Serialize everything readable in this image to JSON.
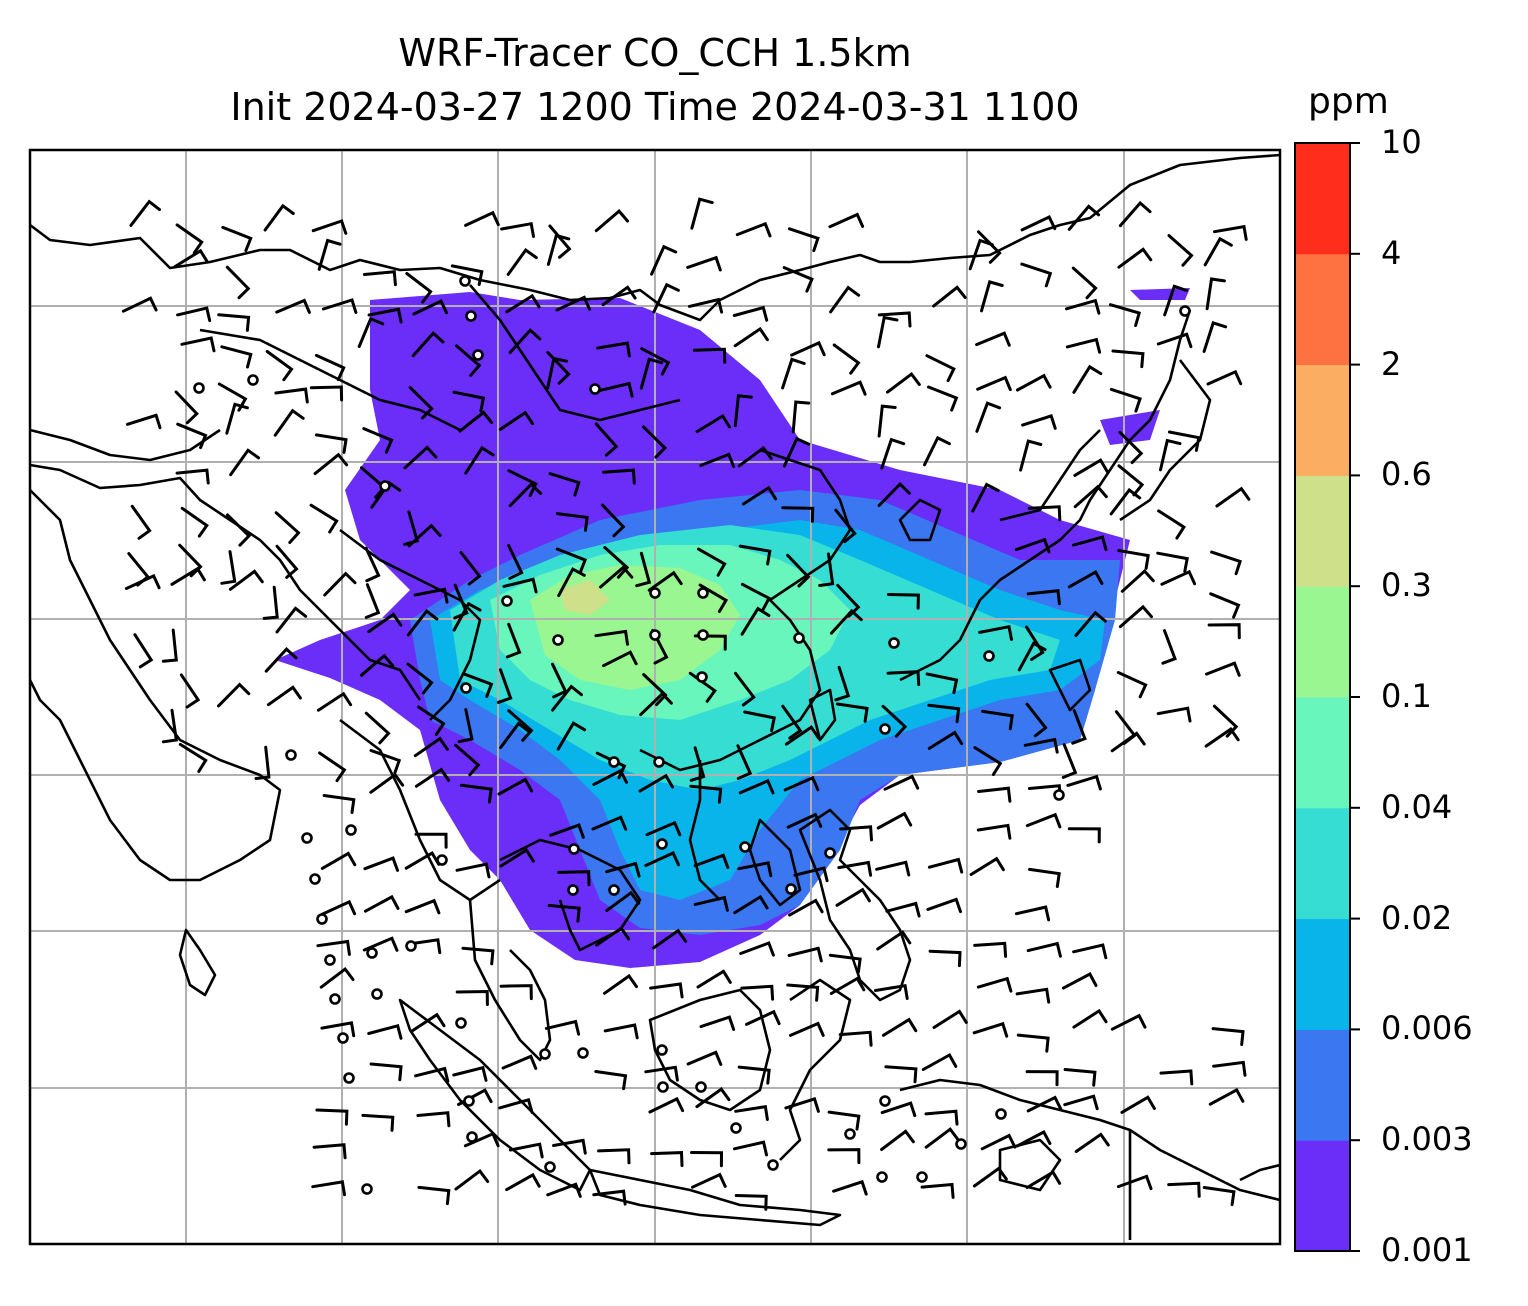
{
  "title": {
    "line1": "WRF-Tracer CO_CCH 1.5km",
    "line2": "Init 2024-03-27 1200 Time 2024-03-31 1100"
  },
  "colorbar": {
    "unit": "ppm",
    "ticks": [
      "0.001",
      "0.003",
      "0.006",
      "0.02",
      "0.04",
      "0.1",
      "0.3",
      "0.6",
      "2",
      "4",
      "10"
    ],
    "colors": [
      "#6a2ef8",
      "#3a77f0",
      "#08b4ea",
      "#35ddd2",
      "#69f6bc",
      "#9af691",
      "#cfe08a",
      "#fbae62",
      "#fe7140",
      "#ff2e1c"
    ]
  },
  "map": {
    "region": "East and Southeast Asia",
    "features": [
      "coastlines",
      "country-borders",
      "gridlines",
      "wind-barbs",
      "calm-wind-circles",
      "CO tracer concentration field"
    ]
  }
}
